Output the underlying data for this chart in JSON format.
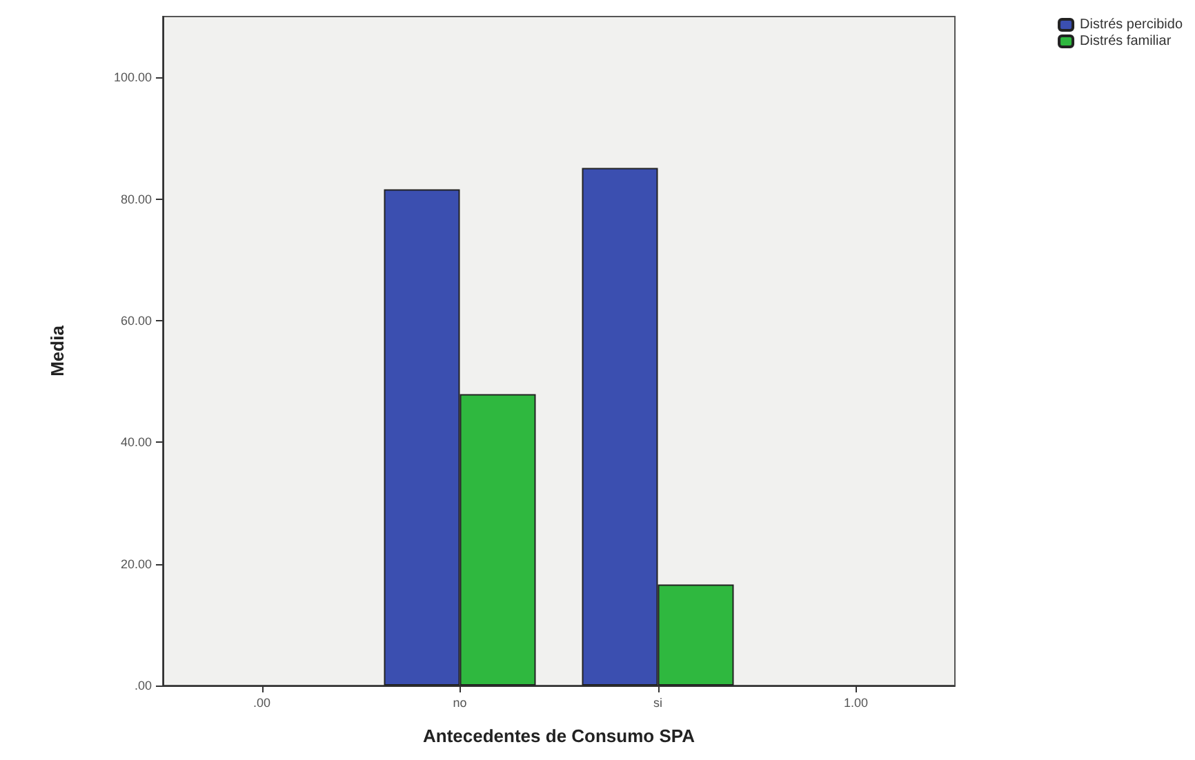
{
  "chart_data": {
    "type": "bar",
    "xlabel": "Antecedentes de Consumo SPA",
    "ylabel": "Media",
    "categories": [
      ".00",
      "no",
      "si",
      "1.00"
    ],
    "series": [
      {
        "name": "Distrés percibido",
        "color": "#3b4fb0",
        "values": [
          null,
          81.6,
          85.1,
          null
        ]
      },
      {
        "name": "Distrés familiar",
        "color": "#2fb83f",
        "values": [
          null,
          47.9,
          16.6,
          null
        ]
      }
    ],
    "ylim": [
      0,
      110
    ],
    "yticks": [
      {
        "value": 0,
        "label": ".00"
      },
      {
        "value": 20,
        "label": "20.00"
      },
      {
        "value": 40,
        "label": "40.00"
      },
      {
        "value": 60,
        "label": "60.00"
      },
      {
        "value": 80,
        "label": "80.00"
      },
      {
        "value": 100,
        "label": "100.00"
      }
    ],
    "grid": false,
    "legend": "top right"
  }
}
